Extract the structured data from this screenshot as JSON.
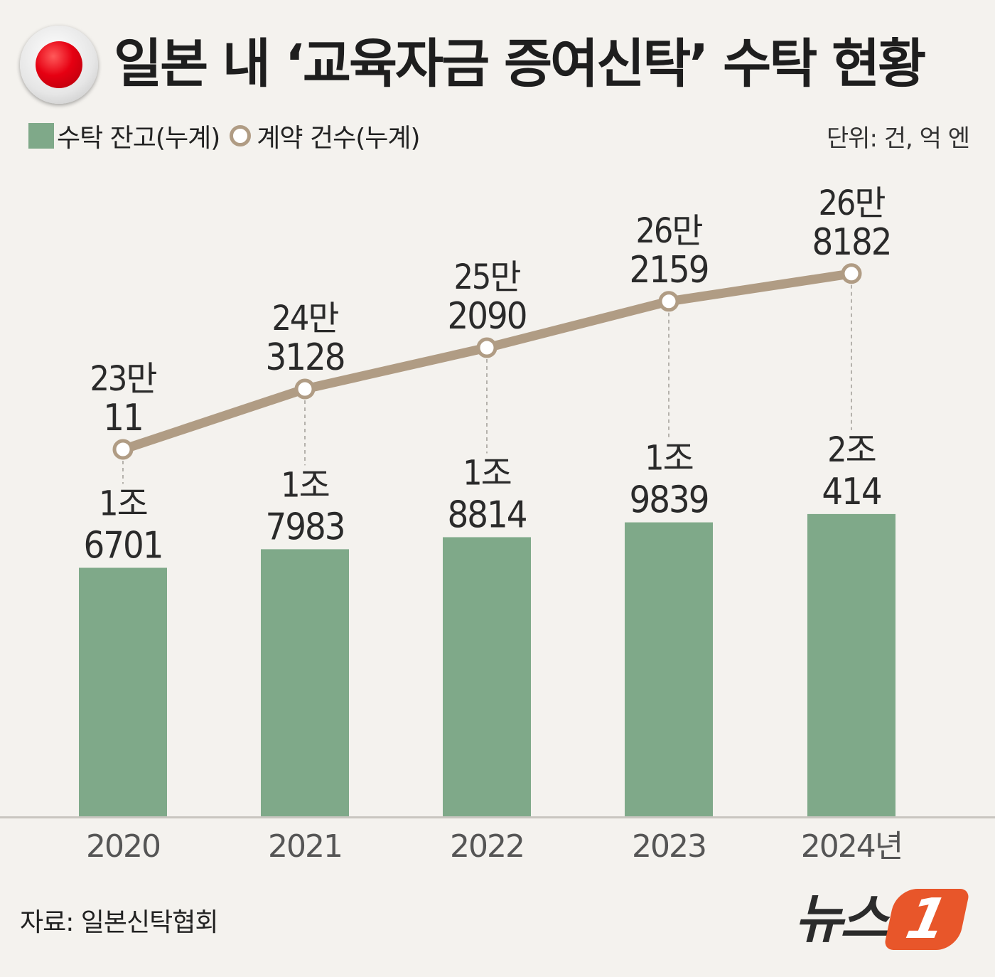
{
  "title": "일본 내 ‘교육자금 증여신탁’ 수탁 현황",
  "legend": {
    "bar_label": "수탁 잔고(누계)",
    "line_label": "계약 건수(누계)"
  },
  "unit": "단위: 건, 억 엔",
  "source": "자료: 일본신탁협회",
  "logo": {
    "text": "뉴스",
    "mark": "1"
  },
  "colors": {
    "bar": "#7fa989",
    "line": "#b09c84",
    "background": "#f4f2ee",
    "flag_red": "#e60012",
    "logo_orange": "#e8562a"
  },
  "icons": {
    "flag": "japan-flag-icon",
    "legend_bar": "green-square-icon",
    "legend_line": "hollow-circle-icon"
  },
  "chart_data": {
    "type": "bar+line",
    "categories": [
      "2020",
      "2021",
      "2022",
      "2023",
      "2024년"
    ],
    "series": [
      {
        "name": "수탁 잔고(누계)",
        "type": "bar",
        "values": [
          16701,
          17983,
          18814,
          19839,
          20414
        ],
        "labels": [
          [
            "1조",
            "6701"
          ],
          [
            "1조",
            "7983"
          ],
          [
            "1조",
            "8814"
          ],
          [
            "1조",
            "9839"
          ],
          [
            "2조",
            "414"
          ]
        ]
      },
      {
        "name": "계약 건수(누계)",
        "type": "line",
        "values": [
          230011,
          243128,
          252090,
          262159,
          268182
        ],
        "labels": [
          [
            "23만",
            "11"
          ],
          [
            "24만",
            "3128"
          ],
          [
            "25만",
            "2090"
          ],
          [
            "26만",
            "2159"
          ],
          [
            "26만",
            "8182"
          ]
        ]
      }
    ]
  }
}
